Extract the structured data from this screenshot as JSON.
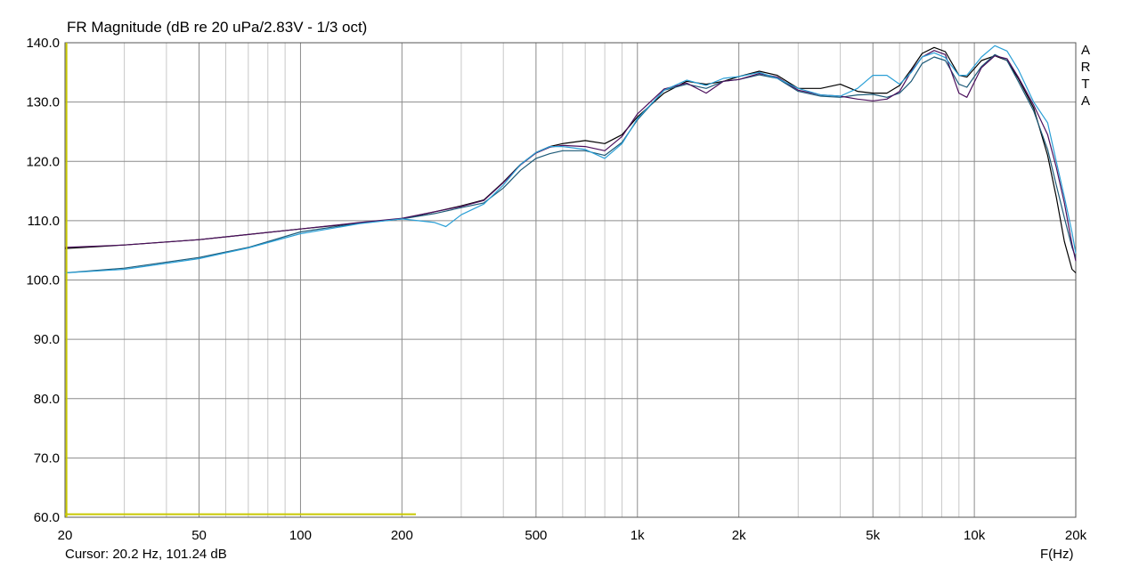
{
  "chart_data": {
    "type": "line",
    "title": "FR Magnitude (dB re 20 uPa/2.83V - 1/3 oct)",
    "xlabel": "F(Hz)",
    "ylabel": "",
    "x_scale": "log",
    "xlim": [
      20,
      20000
    ],
    "ylim": [
      60,
      140
    ],
    "grid": true,
    "y_ticks": [
      "140.0",
      "130.0",
      "120.0",
      "110.0",
      "100.0",
      "90.0",
      "80.0",
      "70.0",
      "60.0"
    ],
    "y_tick_values": [
      140,
      130,
      120,
      110,
      100,
      90,
      80,
      70,
      60
    ],
    "x_ticks": [
      "20",
      "50",
      "100",
      "200",
      "500",
      "1k",
      "2k",
      "5k",
      "10k",
      "20k"
    ],
    "x_tick_values": [
      20,
      50,
      100,
      200,
      500,
      1000,
      2000,
      5000,
      10000,
      20000
    ],
    "series": [
      {
        "color": "#000000",
        "points": [
          [
            20,
            105.3
          ],
          [
            30,
            105.9
          ],
          [
            50,
            106.8
          ],
          [
            100,
            108.6
          ],
          [
            150,
            109.6
          ],
          [
            200,
            110.3
          ],
          [
            250,
            111.5
          ],
          [
            300,
            112.5
          ],
          [
            350,
            113.5
          ],
          [
            400,
            116.5
          ],
          [
            450,
            119.5
          ],
          [
            500,
            121.5
          ],
          [
            550,
            122.5
          ],
          [
            600,
            123
          ],
          [
            700,
            123.5
          ],
          [
            800,
            123
          ],
          [
            900,
            124.5
          ],
          [
            1000,
            127.5
          ],
          [
            1200,
            131.5
          ],
          [
            1400,
            133.5
          ],
          [
            1600,
            133
          ],
          [
            1800,
            133.5
          ],
          [
            2000,
            134.3
          ],
          [
            2300,
            135.2
          ],
          [
            2600,
            134.5
          ],
          [
            3000,
            132.3
          ],
          [
            3500,
            132.3
          ],
          [
            4000,
            133
          ],
          [
            4500,
            131.8
          ],
          [
            5000,
            131.5
          ],
          [
            5500,
            131.5
          ],
          [
            6000,
            132.8
          ],
          [
            6500,
            135.5
          ],
          [
            7000,
            138.2
          ],
          [
            7600,
            139.2
          ],
          [
            8200,
            138.5
          ],
          [
            9000,
            134.5
          ],
          [
            9500,
            134.2
          ],
          [
            10500,
            137
          ],
          [
            11500,
            137.8
          ],
          [
            12500,
            137
          ],
          [
            13500,
            134
          ],
          [
            15000,
            129
          ],
          [
            16500,
            121
          ],
          [
            17500,
            114
          ],
          [
            18500,
            106.5
          ],
          [
            19500,
            101.8
          ],
          [
            20000,
            101.2
          ]
        ]
      },
      {
        "color": "#1d5a78",
        "points": [
          [
            20,
            101.2
          ],
          [
            30,
            102
          ],
          [
            50,
            103.8
          ],
          [
            70,
            105.5
          ],
          [
            100,
            108.1
          ],
          [
            150,
            109.6
          ],
          [
            200,
            110.3
          ],
          [
            250,
            111.2
          ],
          [
            300,
            112.2
          ],
          [
            350,
            113
          ],
          [
            400,
            115.5
          ],
          [
            450,
            118.5
          ],
          [
            500,
            120.5
          ],
          [
            550,
            121.3
          ],
          [
            600,
            121.8
          ],
          [
            700,
            121.8
          ],
          [
            800,
            121
          ],
          [
            900,
            123.2
          ],
          [
            1000,
            127
          ],
          [
            1200,
            132
          ],
          [
            1400,
            133
          ],
          [
            1600,
            132.3
          ],
          [
            1800,
            133.5
          ],
          [
            2000,
            133.8
          ],
          [
            2300,
            134.6
          ],
          [
            2600,
            134
          ],
          [
            3000,
            131.8
          ],
          [
            3500,
            131
          ],
          [
            4000,
            130.8
          ],
          [
            4500,
            131.2
          ],
          [
            5000,
            131.3
          ],
          [
            5500,
            130.8
          ],
          [
            6000,
            131.5
          ],
          [
            6500,
            133.5
          ],
          [
            7000,
            136.5
          ],
          [
            7600,
            137.6
          ],
          [
            8200,
            137
          ],
          [
            9000,
            133
          ],
          [
            9500,
            132.5
          ],
          [
            10500,
            136
          ],
          [
            11500,
            138
          ],
          [
            12500,
            137
          ],
          [
            13500,
            133.5
          ],
          [
            15000,
            128.5
          ],
          [
            16500,
            122
          ],
          [
            17500,
            116
          ],
          [
            18500,
            110.5
          ],
          [
            19500,
            105.5
          ],
          [
            20000,
            103.8
          ]
        ]
      },
      {
        "color": "#4b0f5c",
        "points": [
          [
            20,
            105.5
          ],
          [
            30,
            105.9
          ],
          [
            50,
            106.8
          ],
          [
            100,
            108.6
          ],
          [
            150,
            109.7
          ],
          [
            200,
            110.4
          ],
          [
            250,
            111.5
          ],
          [
            300,
            112.4
          ],
          [
            350,
            113.4
          ],
          [
            400,
            116.4
          ],
          [
            450,
            119.4
          ],
          [
            500,
            121.4
          ],
          [
            550,
            122.4
          ],
          [
            600,
            122.7
          ],
          [
            700,
            122.5
          ],
          [
            800,
            121.8
          ],
          [
            900,
            124.2
          ],
          [
            1000,
            128
          ],
          [
            1200,
            132.2
          ],
          [
            1400,
            133.2
          ],
          [
            1600,
            131.5
          ],
          [
            1800,
            133.5
          ],
          [
            2000,
            133.8
          ],
          [
            2300,
            134.8
          ],
          [
            2600,
            134.2
          ],
          [
            3000,
            132
          ],
          [
            3500,
            131.2
          ],
          [
            4000,
            131
          ],
          [
            4500,
            130.5
          ],
          [
            5000,
            130.2
          ],
          [
            5500,
            130.5
          ],
          [
            6000,
            131.8
          ],
          [
            6500,
            135.2
          ],
          [
            7000,
            137.6
          ],
          [
            7600,
            138.7
          ],
          [
            8200,
            138
          ],
          [
            9000,
            131.5
          ],
          [
            9500,
            130.8
          ],
          [
            10500,
            135.8
          ],
          [
            11500,
            137.8
          ],
          [
            12500,
            137.3
          ],
          [
            13500,
            134.2
          ],
          [
            15000,
            129.5
          ],
          [
            16500,
            124.5
          ],
          [
            17500,
            119
          ],
          [
            18500,
            113
          ],
          [
            19500,
            106
          ],
          [
            20000,
            103.2
          ]
        ]
      },
      {
        "color": "#2a9fd6",
        "points": [
          [
            20,
            101.2
          ],
          [
            30,
            101.8
          ],
          [
            50,
            103.6
          ],
          [
            70,
            105.4
          ],
          [
            100,
            107.8
          ],
          [
            150,
            109.5
          ],
          [
            200,
            110.3
          ],
          [
            250,
            109.7
          ],
          [
            270,
            109
          ],
          [
            300,
            111
          ],
          [
            350,
            112.8
          ],
          [
            400,
            116
          ],
          [
            450,
            119.5
          ],
          [
            500,
            121.5
          ],
          [
            550,
            122.5
          ],
          [
            600,
            122.5
          ],
          [
            700,
            122
          ],
          [
            800,
            120.5
          ],
          [
            900,
            123
          ],
          [
            1000,
            127.2
          ],
          [
            1200,
            132
          ],
          [
            1400,
            133.7
          ],
          [
            1600,
            132.8
          ],
          [
            1800,
            134
          ],
          [
            2000,
            134.3
          ],
          [
            2300,
            135
          ],
          [
            2600,
            134
          ],
          [
            3000,
            132.3
          ],
          [
            3500,
            131.2
          ],
          [
            4000,
            131
          ],
          [
            4500,
            132.3
          ],
          [
            5000,
            134.5
          ],
          [
            5500,
            134.5
          ],
          [
            6000,
            133
          ],
          [
            6500,
            135
          ],
          [
            7000,
            137.6
          ],
          [
            7600,
            138.3
          ],
          [
            8200,
            137.5
          ],
          [
            9000,
            134.5
          ],
          [
            9500,
            134.5
          ],
          [
            10500,
            137.6
          ],
          [
            11500,
            139.5
          ],
          [
            12500,
            138.6
          ],
          [
            13500,
            135.5
          ],
          [
            15000,
            130
          ],
          [
            16500,
            126.5
          ],
          [
            17500,
            120
          ],
          [
            18500,
            114
          ],
          [
            19500,
            108
          ],
          [
            20000,
            104.5
          ]
        ]
      }
    ],
    "cursor_markers": {
      "color": "#c8c800",
      "vertical_x": 20.2,
      "horizontal_y": 60.5,
      "horizontal_x_end": 220
    }
  },
  "cursor_readout": "Cursor: 20.2 Hz, 101.24 dB",
  "watermark": [
    "A",
    "R",
    "T",
    "A"
  ]
}
